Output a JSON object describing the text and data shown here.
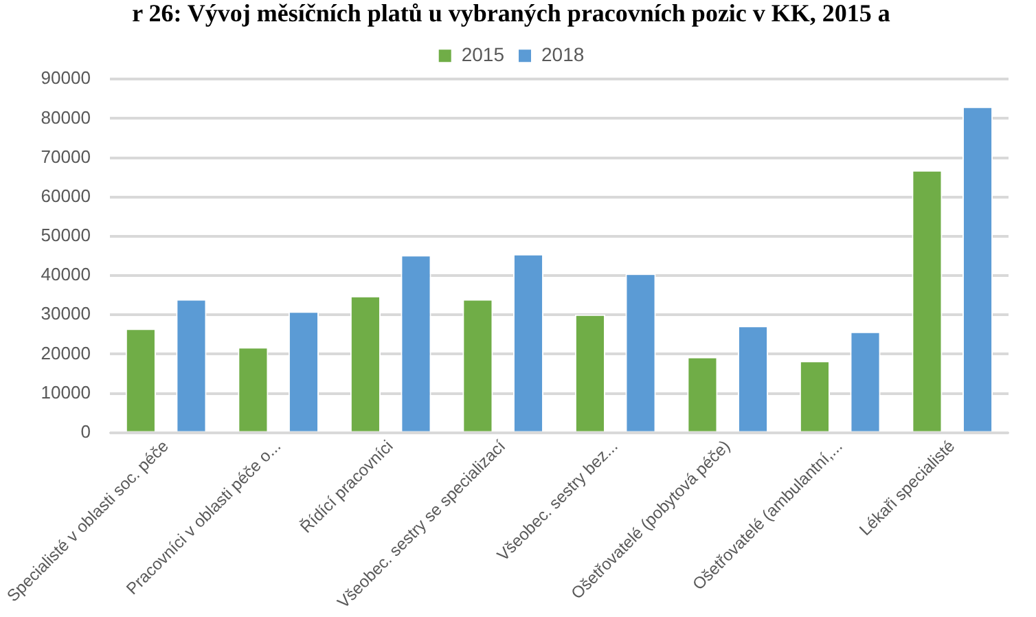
{
  "chart_data": {
    "type": "bar",
    "title": "r 26: Vývoj měsíčních platů u vybraných pracovních pozic v KK, 2015 a",
    "categories": [
      "Specialisté v oblasti soc. péče",
      "Pracovníci v oblasti péče o...",
      "Řídící pracovníci",
      "Všeobec. sestry se specializací",
      "Všeobec. sestry bez...",
      "Ošetřovatelé (pobytová péče)",
      "Ošetřovatelé (ambulantní,...",
      "Lékaři specialisté"
    ],
    "series": [
      {
        "name": "2015",
        "color": "#70ad47",
        "values": [
          26500,
          21800,
          34800,
          34000,
          30100,
          19300,
          18300,
          66800
        ]
      },
      {
        "name": "2018",
        "color": "#5b9bd5",
        "values": [
          34000,
          30900,
          45200,
          45500,
          40500,
          27200,
          25700,
          83000
        ]
      }
    ],
    "ylim": [
      0,
      90000
    ],
    "yticks": [
      0,
      10000,
      20000,
      30000,
      40000,
      50000,
      60000,
      70000,
      80000,
      90000
    ],
    "grid": "y",
    "legend": "top"
  }
}
